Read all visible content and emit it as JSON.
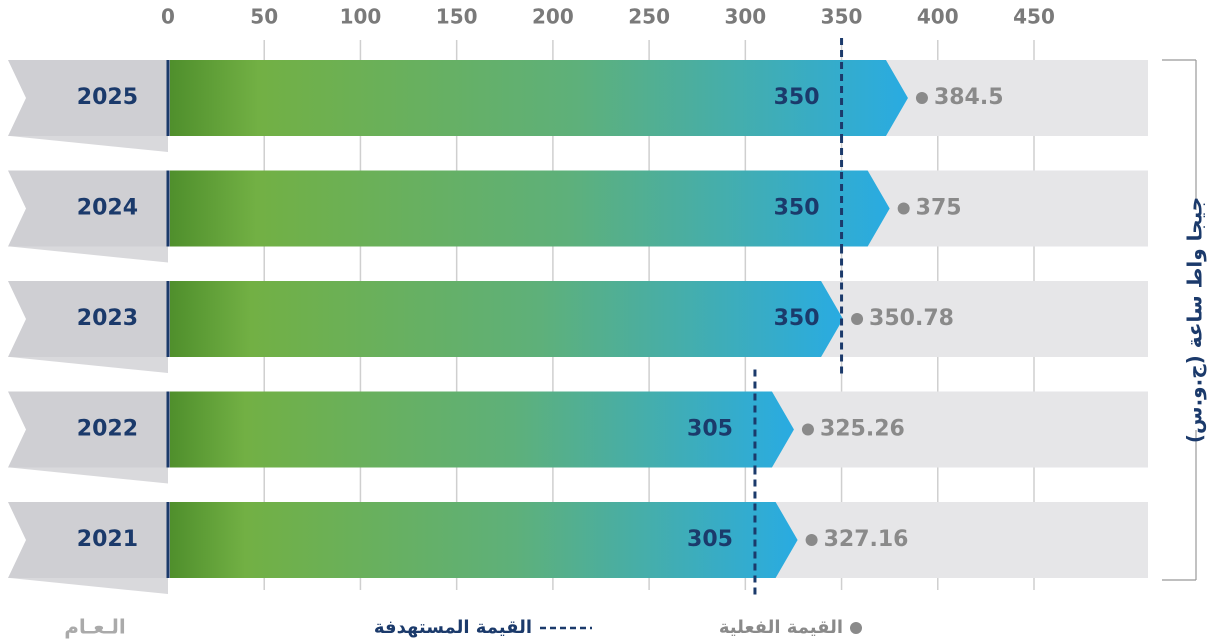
{
  "chart_data": {
    "type": "bar_target",
    "orientation": "horizontal",
    "y_label": "الـعـام",
    "x_label": "جيجا واط ساعة (ج.و.س)",
    "categories": [
      "2025",
      "2024",
      "2023",
      "2022",
      "2021"
    ],
    "series": [
      {
        "name": "القيمة الفعلية",
        "color": "#29abe2",
        "values": [
          384.5,
          375,
          350.78,
          325.26,
          327.16
        ]
      },
      {
        "name": "القيمة المستهدفة",
        "color": "#1b3a6b",
        "values": [
          350,
          350,
          350,
          305,
          305
        ]
      }
    ],
    "xlim": [
      0,
      450
    ],
    "xticks": [
      0,
      50,
      100,
      150,
      200,
      250,
      300,
      350,
      400,
      450
    ],
    "grid": true
  }
}
